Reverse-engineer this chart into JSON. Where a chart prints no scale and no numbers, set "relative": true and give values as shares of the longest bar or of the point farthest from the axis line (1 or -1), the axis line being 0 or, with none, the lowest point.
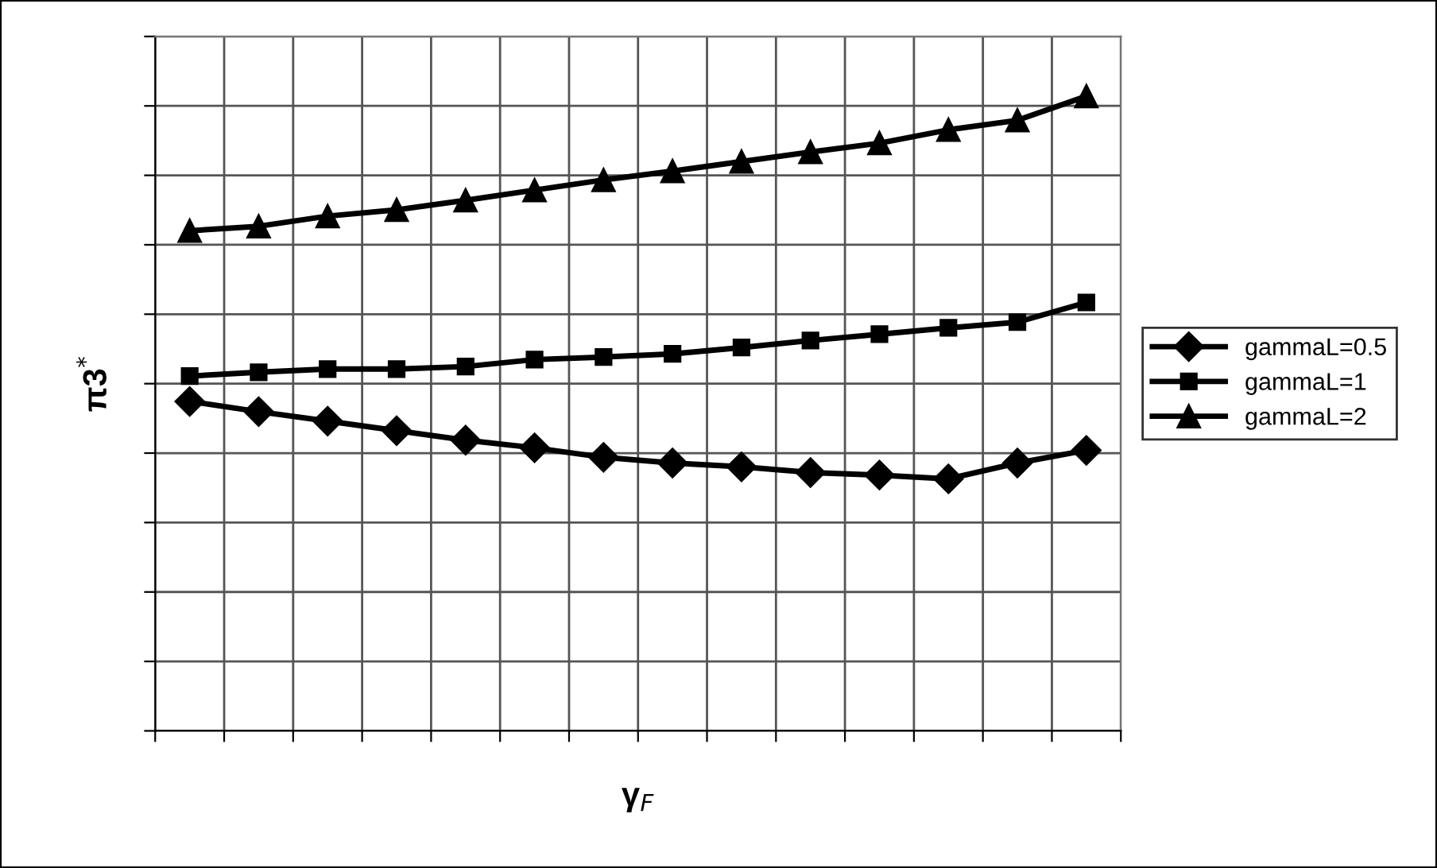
{
  "chart_data": {
    "type": "line",
    "relative": true,
    "xlabel": "γ$_{F}$",
    "ylabel": "π3$^{*}$",
    "categories": [
      null,
      null,
      null,
      null,
      null,
      null,
      null,
      null,
      null,
      null,
      null,
      null,
      null,
      null
    ],
    "grid": true,
    "legend": "right",
    "line_style": "solid",
    "tick_labels": false,
    "series": [
      {
        "name": "gammaL=0.5",
        "color": "#000000",
        "marker": "diamond",
        "values": [
          0.519,
          0.503,
          0.488,
          0.473,
          0.458,
          0.446,
          0.431,
          0.422,
          0.416,
          0.407,
          0.403,
          0.397,
          0.422,
          0.442
        ]
      },
      {
        "name": "gammaL=1",
        "color": "#000000",
        "marker": "square",
        "values": [
          0.559,
          0.565,
          0.57,
          0.57,
          0.574,
          0.585,
          0.589,
          0.594,
          0.604,
          0.615,
          0.625,
          0.635,
          0.644,
          0.675
        ]
      },
      {
        "name": "gammaL=2",
        "color": "#000000",
        "marker": "triangle",
        "values": [
          0.788,
          0.795,
          0.811,
          0.821,
          0.836,
          0.852,
          0.868,
          0.882,
          0.897,
          0.912,
          0.926,
          0.947,
          0.962,
          1
        ]
      }
    ]
  }
}
